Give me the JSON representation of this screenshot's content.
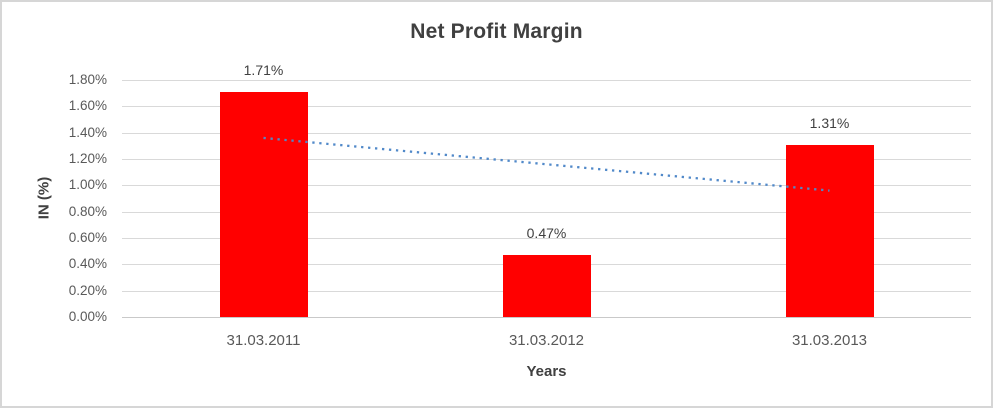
{
  "chart_data": {
    "type": "bar",
    "title": "Net Profit Margin",
    "xlabel": "Years",
    "ylabel": "IN (%)",
    "categories": [
      "31.03.2011",
      "31.03.2012",
      "31.03.2013"
    ],
    "values": [
      1.71,
      0.47,
      1.31
    ],
    "value_labels": [
      "1.71%",
      "0.47%",
      "1.31%"
    ],
    "yticks": [
      "0.00%",
      "0.20%",
      "0.40%",
      "0.60%",
      "0.80%",
      "1.00%",
      "1.20%",
      "1.40%",
      "1.60%",
      "1.80%"
    ],
    "ytick_step": 0.2,
    "ylim": [
      0,
      1.8
    ],
    "grid": true,
    "legend": "none",
    "trendline": {
      "type": "linear",
      "style": "dotted",
      "start_value": 1.36,
      "end_value": 0.96
    },
    "colors": {
      "bar": "#ff0000",
      "trendline": "#5189c9",
      "gridline": "#d9d9d9",
      "axis_line": "#c9c9c9",
      "tick_text": "#595959",
      "title_text": "#404040",
      "frame_border": "#d6d6d6"
    }
  }
}
